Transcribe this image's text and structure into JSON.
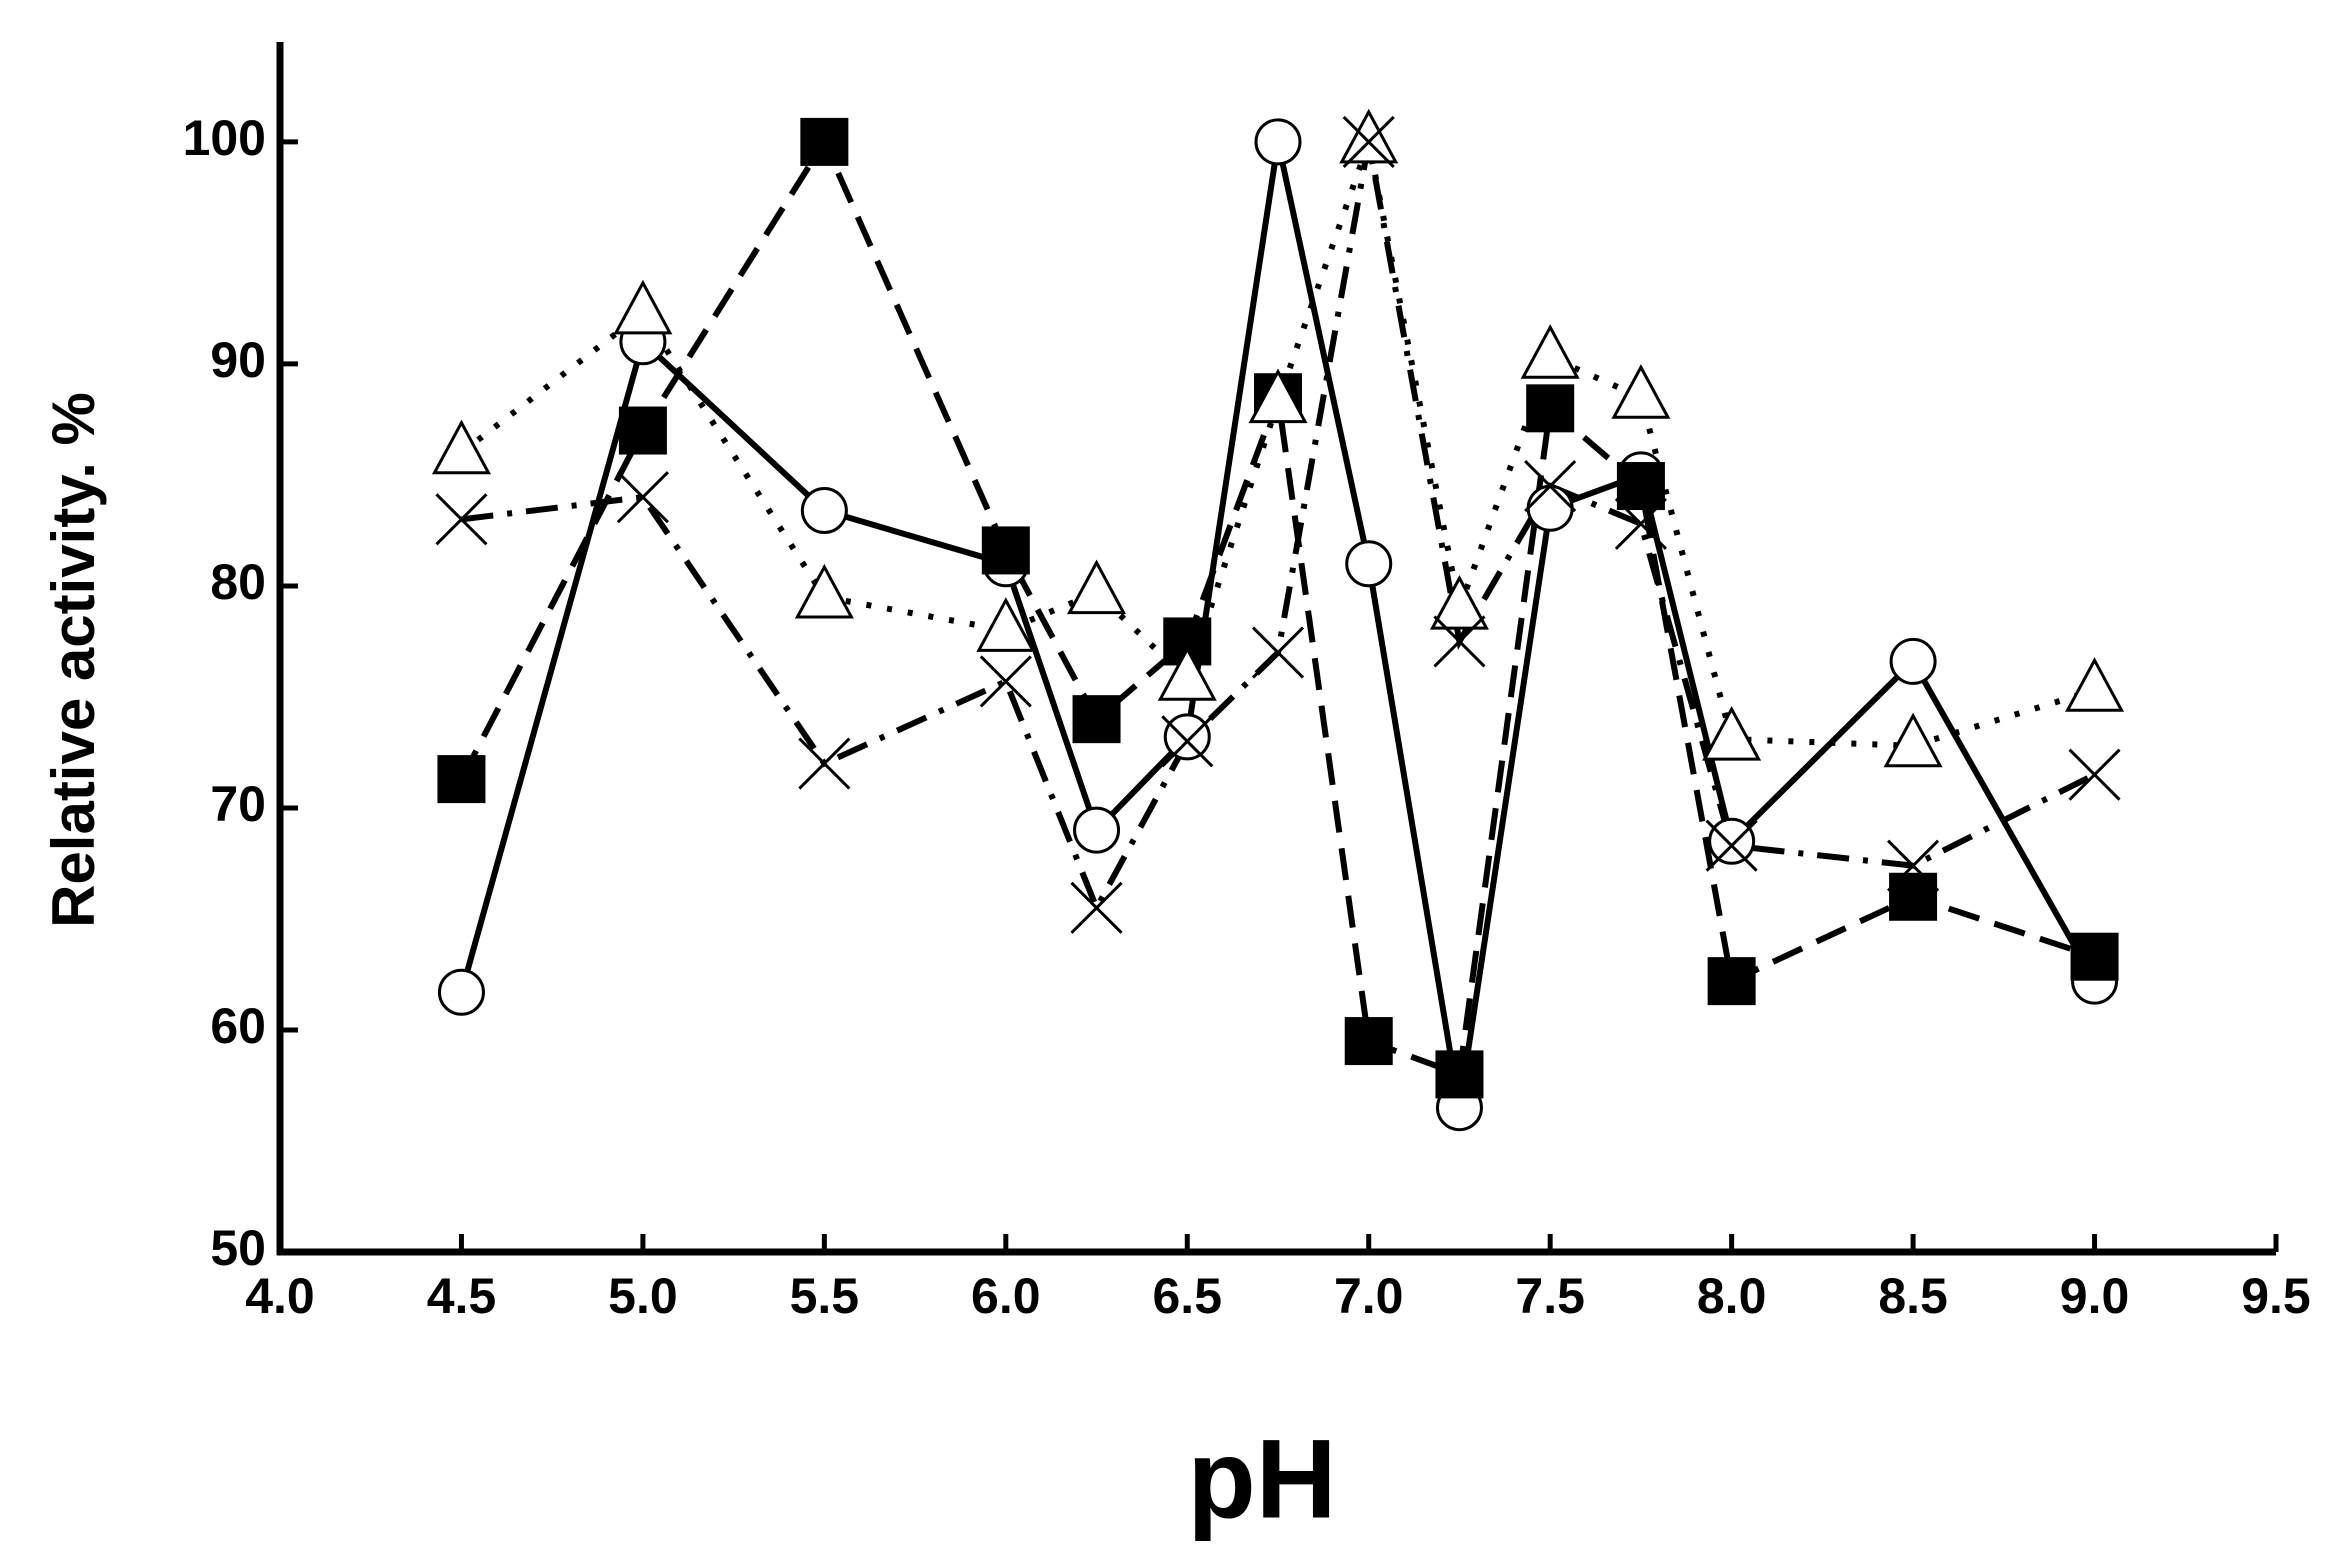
{
  "chart_data": {
    "type": "line",
    "x_label": "pH",
    "y_label": "Relative activity. %",
    "x": [
      4.5,
      5.0,
      5.5,
      6.0,
      6.25,
      6.5,
      6.75,
      7.0,
      7.25,
      7.5,
      7.75,
      8.0,
      8.5,
      9.0
    ],
    "series": [
      {
        "color": "#000000",
        "marker": "circle",
        "line_style": "solid",
        "values": [
          61.7,
          91,
          83.4,
          81,
          69,
          73.2,
          100,
          81,
          56.5,
          83.5,
          85,
          68.5,
          76.6,
          62.2
        ]
      },
      {
        "color": "#000000",
        "marker": "square",
        "line_style": "dashed",
        "values": [
          71.3,
          87,
          100,
          81.6,
          74,
          77.5,
          88.5,
          59.5,
          58,
          88,
          84.5,
          62.2,
          66,
          63.3
        ]
      },
      {
        "color": "#000000",
        "marker": "triangle",
        "line_style": "dotted",
        "values": [
          86,
          92.3,
          79.5,
          78,
          79.7,
          75.8,
          88.3,
          100,
          79,
          90.3,
          88.5,
          73.1,
          72.8,
          75.3
        ]
      },
      {
        "color": "#000000",
        "marker": "cross",
        "line_style": "dashdot",
        "values": [
          83,
          84,
          72,
          75.7,
          65.5,
          73,
          77,
          100,
          77.5,
          84.5,
          82.8,
          68.3,
          67.4,
          71.5
        ]
      }
    ],
    "xlim": [
      4.0,
      9.5
    ],
    "xticks": [
      {
        "value": 4,
        "label": "4.0"
      },
      4.5,
      {
        "value": 5,
        "label": "5.0"
      },
      5.5,
      {
        "value": 6,
        "label": "6.0"
      },
      6.5,
      {
        "value": 7,
        "label": "7.0"
      },
      7.5,
      {
        "value": 8,
        "label": "8.0"
      },
      8.5,
      {
        "value": 9,
        "label": "9.0"
      },
      9.5
    ],
    "ylim": [
      50,
      104.5
    ],
    "yticks": [
      50,
      60,
      70,
      80,
      90,
      100
    ],
    "grid": false
  }
}
